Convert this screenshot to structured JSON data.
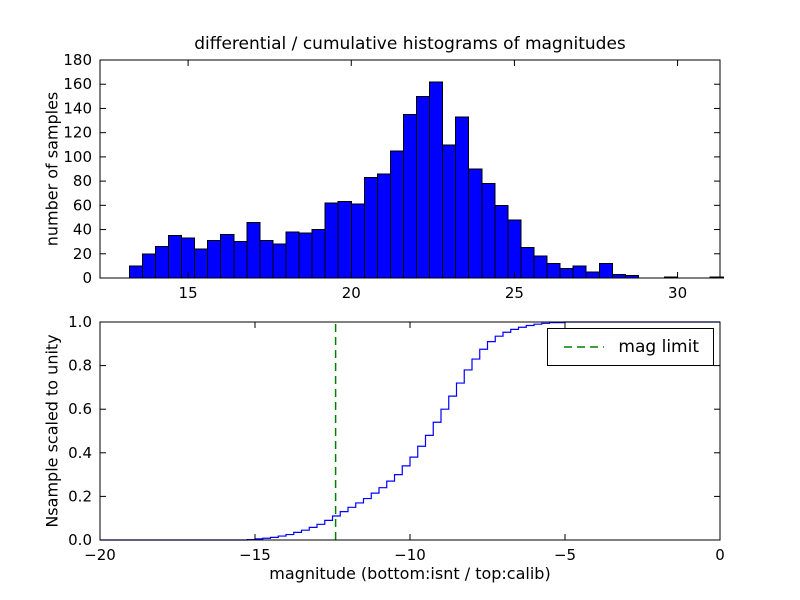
{
  "figure_title": "differential / cumulative histograms of magnitudes",
  "colors": {
    "hist_fill": "#0000ff",
    "hist_edge": "#000000",
    "cumulative_line": "#0000ff",
    "mag_limit": "#008000",
    "axes": "#000000",
    "background": "#ffffff"
  },
  "chart_data": [
    {
      "type": "bar",
      "role": "differential-histogram",
      "title": "differential / cumulative histograms of magnitudes",
      "xlabel": "",
      "ylabel": "number of samples",
      "xlim": [
        12.3,
        31.3
      ],
      "ylim": [
        0,
        180
      ],
      "grid": false,
      "xtick_values": [
        15,
        20,
        25,
        30
      ],
      "xtick_labels": [
        "15",
        "20",
        "25",
        "30"
      ],
      "ytick_values": [
        0,
        20,
        40,
        60,
        80,
        100,
        120,
        140,
        160,
        180
      ],
      "ytick_labels": [
        "0",
        "20",
        "40",
        "60",
        "80",
        "100",
        "120",
        "140",
        "160",
        "180"
      ],
      "bar_color": "#0000ff",
      "bar_edge": "#000000",
      "bin_width": 0.4,
      "bin_left": [
        13.2,
        13.6,
        14.0,
        14.4,
        14.8,
        15.2,
        15.6,
        16.0,
        16.4,
        16.8,
        17.2,
        17.6,
        18.0,
        18.4,
        18.8,
        19.2,
        19.6,
        20.0,
        20.4,
        20.8,
        21.2,
        21.6,
        22.0,
        22.4,
        22.8,
        23.2,
        23.6,
        24.0,
        24.4,
        24.8,
        25.2,
        25.6,
        26.0,
        26.4,
        26.8,
        27.2,
        27.6,
        28.0,
        28.4,
        29.6,
        31.0
      ],
      "counts": [
        10,
        20,
        26,
        35,
        33,
        24,
        31,
        36,
        30,
        46,
        31,
        28,
        38,
        37,
        40,
        62,
        63,
        61,
        83,
        86,
        105,
        135,
        150,
        162,
        110,
        133,
        90,
        78,
        60,
        48,
        25,
        18,
        12,
        8,
        10,
        5,
        12,
        3,
        2,
        1,
        1
      ]
    },
    {
      "type": "line",
      "role": "cumulative-histogram",
      "style": "step",
      "title": "",
      "xlabel": "magnitude (bottom:isnt / top:calib)",
      "ylabel": "Nsample scaled to unity",
      "xlim": [
        -20,
        0
      ],
      "ylim": [
        0.0,
        1.0
      ],
      "grid": false,
      "xtick_values": [
        -20,
        -15,
        -10,
        -5,
        0
      ],
      "xtick_labels": [
        "−20",
        "−15",
        "−10",
        "−5",
        "0"
      ],
      "ytick_values": [
        0.0,
        0.2,
        0.4,
        0.6,
        0.8,
        1.0
      ],
      "ytick_labels": [
        "0.0",
        "0.2",
        "0.4",
        "0.6",
        "0.8",
        "1.0"
      ],
      "line_color": "#0000ff",
      "x": [
        -15.25,
        -15.0,
        -14.75,
        -14.5,
        -14.25,
        -14.0,
        -13.75,
        -13.5,
        -13.25,
        -13.0,
        -12.75,
        -12.5,
        -12.25,
        -12.0,
        -11.75,
        -11.5,
        -11.25,
        -11.0,
        -10.75,
        -10.5,
        -10.25,
        -10.0,
        -9.75,
        -9.5,
        -9.25,
        -9.0,
        -8.75,
        -8.5,
        -8.25,
        -8.0,
        -7.75,
        -7.5,
        -7.25,
        -7.0,
        -6.75,
        -6.5,
        -6.25,
        -6.0,
        -5.75,
        -5.5,
        -5.0
      ],
      "y": [
        0.002,
        0.005,
        0.008,
        0.012,
        0.018,
        0.025,
        0.035,
        0.045,
        0.058,
        0.072,
        0.09,
        0.11,
        0.13,
        0.15,
        0.17,
        0.19,
        0.215,
        0.24,
        0.27,
        0.3,
        0.34,
        0.38,
        0.43,
        0.48,
        0.54,
        0.6,
        0.66,
        0.72,
        0.78,
        0.83,
        0.875,
        0.91,
        0.935,
        0.953,
        0.966,
        0.976,
        0.984,
        0.99,
        0.994,
        0.997,
        1.0
      ],
      "vline": {
        "x": -12.4,
        "color": "#008000",
        "linestyle": "dashed",
        "label": "mag limit"
      },
      "legend": {
        "position": "upper right",
        "entries": [
          {
            "label": "mag limit",
            "color": "#008000",
            "linestyle": "dashed"
          }
        ]
      }
    }
  ]
}
